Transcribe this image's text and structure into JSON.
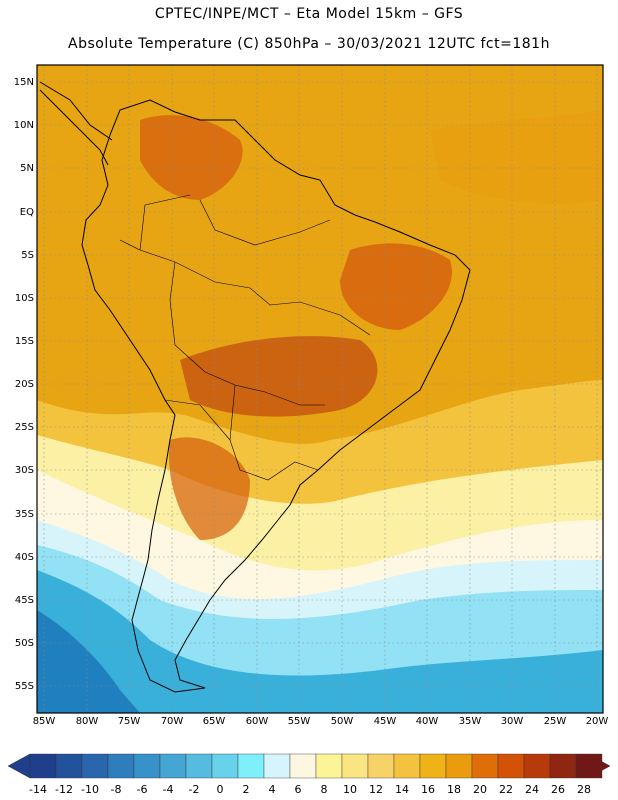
{
  "header": {
    "line1": "CPTEC/INPE/MCT –  Eta Model 15km – GFS",
    "line2": "Absolute Temperature (C) 850hPa – 30/03/2021 12UTC fct=181h"
  },
  "map": {
    "lat_labels": [
      "15N",
      "10N",
      "5N",
      "EQ",
      "5S",
      "10S",
      "15S",
      "20S",
      "25S",
      "30S",
      "35S",
      "40S",
      "45S",
      "50S",
      "55S"
    ],
    "lon_labels": [
      "85W",
      "80W",
      "75W",
      "70W",
      "65W",
      "60W",
      "55W",
      "50W",
      "45W",
      "40W",
      "35W",
      "30W",
      "25W",
      "20W"
    ]
  },
  "colorbar": {
    "labels": [
      "-14",
      "-12",
      "-10",
      "-8",
      "-6",
      "-4",
      "-2",
      "0",
      "2",
      "4",
      "6",
      "8",
      "10",
      "12",
      "14",
      "16",
      "18",
      "20",
      "22",
      "24",
      "26",
      "28"
    ],
    "colors": [
      "#1f3f8c",
      "#23529c",
      "#2a66ad",
      "#2e7dbd",
      "#3792c9",
      "#45a6d3",
      "#55bbe0",
      "#67d2ea",
      "#7ff0fb",
      "#d6f4fb",
      "#fdf6e0",
      "#fcf598",
      "#fae582",
      "#f7d266",
      "#f3c340",
      "#efb217",
      "#eb9c0e",
      "#e06e08",
      "#d45108",
      "#b73a0a",
      "#8f2612",
      "#701818"
    ]
  },
  "colors": {
    "warm": "#e7a514",
    "hot": "#d45e0d",
    "very_hot": "#c24d10",
    "mild": "#f4c33d",
    "pale": "#fcf0a5",
    "cool": "#fef7e2",
    "cold": "#d8f4fb",
    "colder": "#92e1f4",
    "coldest": "#39b0da",
    "deep_cold": "#1f7fbf"
  }
}
